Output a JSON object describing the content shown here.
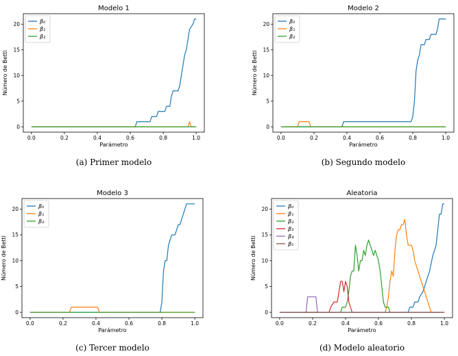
{
  "chart_data": [
    {
      "type": "line",
      "title": "Modelo 1",
      "caption": "(a)  Primer modelo",
      "xlabel": "Parámetro",
      "ylabel": "Número de Betti",
      "xlim": [
        0.0,
        1.0
      ],
      "ylim": [
        0,
        21
      ],
      "xticks": [
        "0.0",
        "0.2",
        "0.4",
        "0.6",
        "0.8",
        "1.0"
      ],
      "yticks": [
        "0",
        "5",
        "10",
        "15",
        "20"
      ],
      "legend": "top-left",
      "grid": false,
      "series": [
        {
          "name": "β₀",
          "color": "#1f77b4",
          "points": [
            [
              0,
              0
            ],
            [
              0.63,
              0
            ],
            [
              0.64,
              1
            ],
            [
              0.72,
              1
            ],
            [
              0.73,
              2
            ],
            [
              0.76,
              2
            ],
            [
              0.77,
              3
            ],
            [
              0.81,
              3
            ],
            [
              0.82,
              4
            ],
            [
              0.84,
              4
            ],
            [
              0.85,
              6
            ],
            [
              0.86,
              7
            ],
            [
              0.89,
              7
            ],
            [
              0.9,
              8
            ],
            [
              0.91,
              10
            ],
            [
              0.92,
              12
            ],
            [
              0.93,
              14
            ],
            [
              0.94,
              15
            ],
            [
              0.95,
              17
            ],
            [
              0.96,
              19
            ],
            [
              0.98,
              20
            ],
            [
              0.99,
              21
            ],
            [
              1,
              21
            ]
          ]
        },
        {
          "name": "β₁",
          "color": "#ff7f0e",
          "points": [
            [
              0,
              0
            ],
            [
              0.95,
              0
            ],
            [
              0.96,
              1
            ],
            [
              0.97,
              0
            ],
            [
              1,
              0
            ]
          ]
        },
        {
          "name": "β₂",
          "color": "#2ca02c",
          "points": [
            [
              0,
              0
            ],
            [
              1,
              0
            ]
          ]
        }
      ]
    },
    {
      "type": "line",
      "title": "Modelo 2",
      "caption": "(b)  Segundo modelo",
      "xlabel": "Parámetro",
      "ylabel": "Número de Betti",
      "xlim": [
        0.0,
        1.0
      ],
      "ylim": [
        0,
        21
      ],
      "xticks": [
        "0.0",
        "0.2",
        "0.4",
        "0.6",
        "0.8",
        "1.0"
      ],
      "yticks": [
        "0",
        "5",
        "10",
        "15",
        "20"
      ],
      "legend": "top-left",
      "grid": false,
      "series": [
        {
          "name": "β₀",
          "color": "#1f77b4",
          "points": [
            [
              0,
              0
            ],
            [
              0.37,
              0
            ],
            [
              0.38,
              1
            ],
            [
              0.79,
              1
            ],
            [
              0.8,
              2
            ],
            [
              0.81,
              5
            ],
            [
              0.82,
              11
            ],
            [
              0.83,
              13
            ],
            [
              0.84,
              14
            ],
            [
              0.85,
              16
            ],
            [
              0.87,
              16
            ],
            [
              0.88,
              17
            ],
            [
              0.9,
              17
            ],
            [
              0.91,
              18
            ],
            [
              0.94,
              18
            ],
            [
              0.95,
              19
            ],
            [
              0.96,
              21
            ],
            [
              1,
              21
            ]
          ]
        },
        {
          "name": "β₁",
          "color": "#ff7f0e",
          "points": [
            [
              0,
              0
            ],
            [
              0.1,
              0
            ],
            [
              0.11,
              1
            ],
            [
              0.17,
              1
            ],
            [
              0.18,
              0
            ],
            [
              1,
              0
            ]
          ]
        },
        {
          "name": "β₂",
          "color": "#2ca02c",
          "points": [
            [
              0,
              0
            ],
            [
              1,
              0
            ]
          ]
        }
      ]
    },
    {
      "type": "line",
      "title": "Modelo 3",
      "caption": "(c)  Tercer modelo",
      "xlabel": "Parámetro",
      "ylabel": "Número de Betti",
      "xlim": [
        0.0,
        1.0
      ],
      "ylim": [
        0,
        21
      ],
      "xticks": [
        "0.0",
        "0.2",
        "0.4",
        "0.6",
        "0.8",
        "1.0"
      ],
      "yticks": [
        "0",
        "5",
        "10",
        "15",
        "20"
      ],
      "legend": "top-left",
      "grid": false,
      "series": [
        {
          "name": "β₀",
          "color": "#1f77b4",
          "points": [
            [
              0,
              0
            ],
            [
              0.79,
              0
            ],
            [
              0.8,
              2
            ],
            [
              0.81,
              8
            ],
            [
              0.82,
              10
            ],
            [
              0.83,
              10
            ],
            [
              0.84,
              13
            ],
            [
              0.85,
              14
            ],
            [
              0.86,
              15
            ],
            [
              0.88,
              15
            ],
            [
              0.89,
              16
            ],
            [
              0.9,
              17
            ],
            [
              0.91,
              17
            ],
            [
              0.92,
              18
            ],
            [
              0.93,
              19
            ],
            [
              0.95,
              21
            ],
            [
              1,
              21
            ]
          ]
        },
        {
          "name": "β₁",
          "color": "#ff7f0e",
          "points": [
            [
              0,
              0
            ],
            [
              0.24,
              0
            ],
            [
              0.25,
              1
            ],
            [
              0.41,
              1
            ],
            [
              0.42,
              0
            ],
            [
              1,
              0
            ]
          ]
        },
        {
          "name": "β₂",
          "color": "#2ca02c",
          "points": [
            [
              0,
              0
            ],
            [
              1,
              0
            ]
          ]
        }
      ]
    },
    {
      "type": "line",
      "title": "Aleatoria",
      "caption": "(d)  Modelo aleatorio",
      "xlabel": "Parámetro",
      "ylabel": "Número de Betti",
      "xlim": [
        0.0,
        1.0
      ],
      "ylim": [
        0,
        21
      ],
      "xticks": [
        "0.0",
        "0.2",
        "0.4",
        "0.6",
        "0.8",
        "1.0"
      ],
      "yticks": [
        "0",
        "5",
        "10",
        "15",
        "20"
      ],
      "legend": "top-left",
      "grid": false,
      "series": [
        {
          "name": "β₀",
          "color": "#1f77b4",
          "points": [
            [
              0,
              0
            ],
            [
              0.78,
              0
            ],
            [
              0.79,
              1
            ],
            [
              0.81,
              1
            ],
            [
              0.82,
              2
            ],
            [
              0.84,
              2
            ],
            [
              0.85,
              3
            ],
            [
              0.87,
              4
            ],
            [
              0.88,
              5
            ],
            [
              0.9,
              7
            ],
            [
              0.91,
              8
            ],
            [
              0.93,
              11
            ],
            [
              0.95,
              13
            ],
            [
              0.96,
              16
            ],
            [
              0.97,
              19
            ],
            [
              0.98,
              19
            ],
            [
              0.99,
              21
            ],
            [
              1,
              21
            ]
          ]
        },
        {
          "name": "β₁",
          "color": "#ff7f0e",
          "points": [
            [
              0,
              0
            ],
            [
              0.64,
              0
            ],
            [
              0.65,
              1
            ],
            [
              0.66,
              3
            ],
            [
              0.67,
              6
            ],
            [
              0.68,
              8
            ],
            [
              0.69,
              7
            ],
            [
              0.7,
              12
            ],
            [
              0.71,
              15
            ],
            [
              0.72,
              16
            ],
            [
              0.73,
              16
            ],
            [
              0.74,
              17
            ],
            [
              0.75,
              17
            ],
            [
              0.76,
              18
            ],
            [
              0.77,
              15
            ],
            [
              0.78,
              13
            ],
            [
              0.8,
              13
            ],
            [
              0.81,
              12
            ],
            [
              0.82,
              10
            ],
            [
              0.84,
              8
            ],
            [
              0.86,
              6
            ],
            [
              0.88,
              4
            ],
            [
              0.9,
              2
            ],
            [
              0.91,
              1
            ],
            [
              0.92,
              0
            ],
            [
              1,
              0
            ]
          ]
        },
        {
          "name": "β₂",
          "color": "#2ca02c",
          "points": [
            [
              0,
              0
            ],
            [
              0.37,
              0
            ],
            [
              0.38,
              1
            ],
            [
              0.4,
              1
            ],
            [
              0.41,
              2
            ],
            [
              0.42,
              4
            ],
            [
              0.43,
              7
            ],
            [
              0.44,
              8
            ],
            [
              0.45,
              8
            ],
            [
              0.46,
              13
            ],
            [
              0.47,
              11
            ],
            [
              0.48,
              8
            ],
            [
              0.49,
              10
            ],
            [
              0.5,
              10
            ],
            [
              0.51,
              12
            ],
            [
              0.52,
              11
            ],
            [
              0.53,
              13
            ],
            [
              0.54,
              14
            ],
            [
              0.55,
              13
            ],
            [
              0.56,
              12
            ],
            [
              0.57,
              11
            ],
            [
              0.58,
              12
            ],
            [
              0.59,
              11
            ],
            [
              0.6,
              10
            ],
            [
              0.61,
              8
            ],
            [
              0.62,
              5
            ],
            [
              0.63,
              2
            ],
            [
              0.64,
              1
            ],
            [
              0.66,
              1
            ],
            [
              0.67,
              0
            ],
            [
              1,
              0
            ]
          ]
        },
        {
          "name": "β₃",
          "color": "#d62728",
          "points": [
            [
              0,
              0
            ],
            [
              0.3,
              0
            ],
            [
              0.31,
              1
            ],
            [
              0.33,
              2
            ],
            [
              0.35,
              2
            ],
            [
              0.36,
              4
            ],
            [
              0.37,
              6
            ],
            [
              0.38,
              6
            ],
            [
              0.39,
              4
            ],
            [
              0.4,
              6
            ],
            [
              0.41,
              5
            ],
            [
              0.42,
              2
            ],
            [
              0.43,
              1
            ],
            [
              0.44,
              0
            ],
            [
              1,
              0
            ]
          ]
        },
        {
          "name": "β₄",
          "color": "#9467bd",
          "points": [
            [
              0,
              0
            ],
            [
              0.16,
              0
            ],
            [
              0.17,
              3
            ],
            [
              0.22,
              3
            ],
            [
              0.23,
              0
            ],
            [
              1,
              0
            ]
          ]
        },
        {
          "name": "β₅",
          "color": "#8c564b",
          "points": [
            [
              0,
              0
            ],
            [
              1,
              0
            ]
          ]
        }
      ]
    }
  ]
}
